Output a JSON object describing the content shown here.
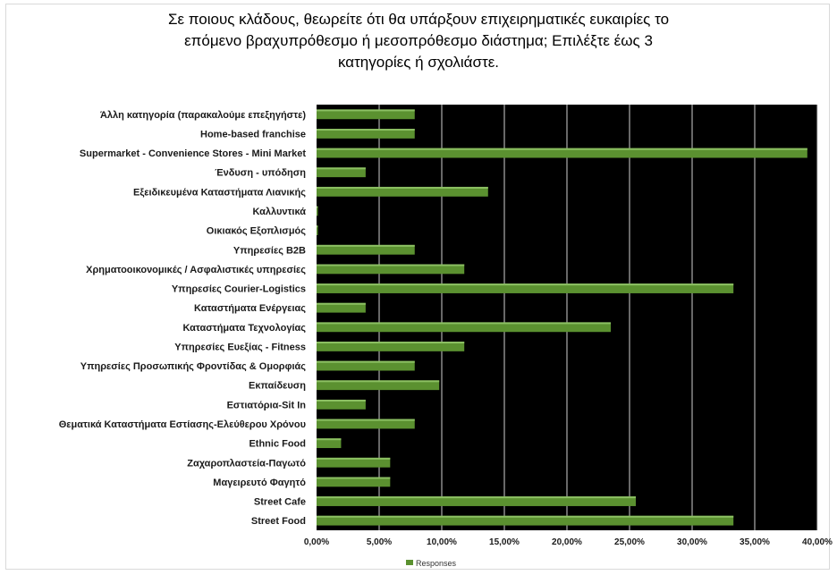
{
  "chart_data": {
    "type": "bar",
    "orientation": "horizontal",
    "title_lines": [
      "Σε ποιους κλάδους, θεωρείτε ότι θα υπάρξουν επιχειρηματικές ευκαιρίες το",
      "επόμενο βραχυπρόθεσμο ή μεσοπρόθεσμο διάστημα; Επιλέξτε έως 3",
      "κατηγορίες ή σχολιάστε."
    ],
    "categories": [
      "Άλλη κατηγορία (παρακαλούμε επεξηγήστε)",
      "Home-based franchise",
      "Supermarket - Convenience Stores - Mini Market",
      "Ένδυση - υπόδηση",
      "Εξειδικευμένα Καταστήματα Λιανικής",
      "Καλλυντικά",
      "Οικιακός Εξοπλισμός",
      "Υπηρεσίες B2B",
      "Χρηματοοικονομικές / Ασφαλιστικές υπηρεσίες",
      "Υπηρεσίες Courier-Logistics",
      "Καταστήματα Ενέργειας",
      "Καταστήματα Τεχνολογίας",
      "Υπηρεσίες Ευεξίας - Fitness",
      "Υπηρεσίες Προσωπικής Φροντίδας & Ομορφιάς",
      "Εκπαίδευση",
      "Εστιατόρια-Sit In",
      "Θεματικά Καταστήματα Εστίασης-Ελεύθερου Χρόνου",
      "Ethnic Food",
      "Ζαχαροπλαστεία-Παγωτό",
      "Μαγειρευτό Φαγητό",
      "Street Cafe",
      "Street Food"
    ],
    "series": [
      {
        "name": "Responses",
        "color": "#5b9130",
        "values": [
          7.84,
          7.84,
          39.2,
          3.92,
          13.7,
          0,
          0,
          7.84,
          11.8,
          33.3,
          3.92,
          23.5,
          11.8,
          7.84,
          9.8,
          3.92,
          7.84,
          1.96,
          5.88,
          5.88,
          25.5,
          33.3
        ]
      }
    ],
    "x_ticks": [
      "0,00%",
      "5,00%",
      "10,00%",
      "15,00%",
      "20,00%",
      "25,00%",
      "30,00%",
      "35,00%",
      "40,00%"
    ],
    "xlim": [
      0,
      40
    ],
    "unit": "%",
    "background": "#000000",
    "grid": true,
    "legend_position": "bottom"
  }
}
